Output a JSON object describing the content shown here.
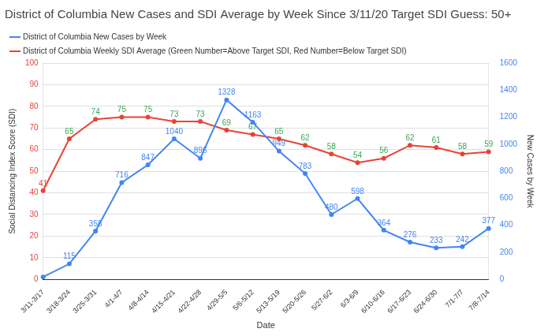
{
  "chart_data": {
    "type": "line",
    "title": "District of Columbia New Cases and SDI Average by Week Since 3/11/20 Target SDI Guess: 50+",
    "x_label": "Date",
    "y_label": "Social Distancing Index Score (SDI)",
    "y2_label": "New Cases by Week",
    "categories": [
      "3/11-3/17",
      "3/18-3/24",
      "3/25-3/31",
      "4/1-4/7",
      "4/8-4/14",
      "4/15-4/21",
      "4/22-4/28",
      "4/29-5/5",
      "5/6-5/12",
      "5/13-5/19",
      "5/20-5/26",
      "5/27-6/2",
      "6/3-6/9",
      "6/10-6/16",
      "6/17-6/23",
      "6/24-6/30",
      "7/1-7/7",
      "7/8-7/14"
    ],
    "series": [
      {
        "name": "District of Columbia New Cases by Week",
        "color": "#4285f4",
        "axis": "y2",
        "marker": "circle",
        "values": [
          18,
          115,
          358,
          716,
          847,
          1040,
          896,
          1328,
          1163,
          949,
          783,
          480,
          598,
          364,
          276,
          233,
          242,
          377
        ],
        "value_labels": [
          null,
          "115",
          "358",
          "716",
          "847",
          "1040",
          "896",
          "1328",
          "1163",
          "949",
          "783",
          "480",
          "598",
          "364",
          "276",
          "233",
          "242",
          "377"
        ]
      },
      {
        "name": "District of Columbia Weekly SDI Average (Green Number=Above Target SDI, Red Number=Below Target SDI)",
        "color": "#ea4335",
        "axis": "y",
        "marker": "circle",
        "values": [
          41,
          65,
          74,
          75,
          75,
          73,
          73,
          69,
          67,
          65,
          62,
          58,
          54,
          56,
          62,
          61,
          58,
          59
        ],
        "colors": [
          "#ea4335",
          "#34a853",
          "#34a853",
          "#34a853",
          "#34a853",
          "#34a853",
          "#34a853",
          "#34a853",
          "#34a853",
          "#34a853",
          "#34a853",
          "#34a853",
          "#34a853",
          "#34a853",
          "#34a853",
          "#34a853",
          "#34a853",
          "#34a853"
        ]
      }
    ],
    "ylim": [
      0,
      100
    ],
    "yticks": [
      0,
      10,
      20,
      30,
      40,
      50,
      60,
      70,
      80,
      90,
      100
    ],
    "y2lim": [
      0,
      1600
    ],
    "y2ticks": [
      0,
      200,
      400,
      600,
      800,
      1000,
      1200,
      1400,
      1600
    ],
    "grid": true,
    "legend": "top",
    "data_labels": true
  }
}
